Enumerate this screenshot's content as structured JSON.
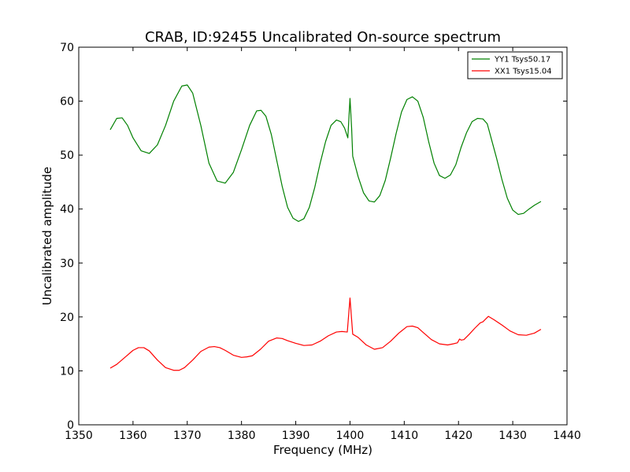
{
  "chart_data": {
    "type": "line",
    "title": "CRAB, ID:92455 Uncalibrated On-source spectrum",
    "xlabel": "Frequency (MHz)",
    "ylabel": "Uncalibrated amplitude",
    "xlim": [
      1350,
      1440
    ],
    "ylim": [
      0,
      70
    ],
    "xticks": [
      1350,
      1360,
      1370,
      1380,
      1390,
      1400,
      1410,
      1420,
      1430,
      1440
    ],
    "yticks": [
      0,
      10,
      20,
      30,
      40,
      50,
      60,
      70
    ],
    "grid": false,
    "legend_position": "top-right",
    "series": [
      {
        "name": "YY1 Tsys50.17",
        "color": "#008000",
        "x": [
          1355.8,
          1357.0,
          1358.0,
          1359.0,
          1360.0,
          1361.5,
          1363.0,
          1364.5,
          1366.0,
          1367.5,
          1369.0,
          1370.0,
          1371.0,
          1372.5,
          1374.0,
          1375.5,
          1377.0,
          1378.5,
          1380.0,
          1381.5,
          1382.8,
          1383.6,
          1384.5,
          1385.5,
          1386.5,
          1387.5,
          1388.5,
          1389.5,
          1390.5,
          1391.5,
          1392.5,
          1393.5,
          1394.5,
          1395.5,
          1396.5,
          1397.5,
          1398.3,
          1399.0,
          1399.6,
          1400.0,
          1400.3,
          1400.5,
          1401.5,
          1402.5,
          1403.5,
          1404.5,
          1405.5,
          1406.5,
          1407.5,
          1408.5,
          1409.5,
          1410.5,
          1411.5,
          1412.5,
          1413.5,
          1414.5,
          1415.5,
          1416.5,
          1417.5,
          1418.5,
          1419.5,
          1420.5,
          1421.5,
          1422.5,
          1423.5,
          1424.5,
          1425.3,
          1426.0,
          1427.0,
          1428.0,
          1429.0,
          1430.0,
          1431.0,
          1432.0,
          1433.0,
          1434.0,
          1435.2
        ],
        "y": [
          54.7,
          56.8,
          56.9,
          55.5,
          53.2,
          50.8,
          50.3,
          51.9,
          55.5,
          60.0,
          62.8,
          63.0,
          61.5,
          55.5,
          48.5,
          45.2,
          44.8,
          46.8,
          51.0,
          55.5,
          58.2,
          58.3,
          57.2,
          53.8,
          49.0,
          44.2,
          40.3,
          38.3,
          37.7,
          38.2,
          40.3,
          44.0,
          48.5,
          52.5,
          55.5,
          56.5,
          56.2,
          55.0,
          53.2,
          60.5,
          55.0,
          49.8,
          46.0,
          43.0,
          41.5,
          41.3,
          42.5,
          45.3,
          49.5,
          54.0,
          58.0,
          60.3,
          60.8,
          60.0,
          57.0,
          52.5,
          48.5,
          46.2,
          45.7,
          46.3,
          48.2,
          51.5,
          54.2,
          56.2,
          56.8,
          56.7,
          55.8,
          53.2,
          49.5,
          45.5,
          42.0,
          39.8,
          39.0,
          39.2,
          40.0,
          40.7,
          41.4
        ]
      },
      {
        "name": "XX1 Tsys15.04",
        "color": "#ff0000",
        "x": [
          1355.8,
          1357.0,
          1358.5,
          1360.0,
          1361.0,
          1362.0,
          1363.0,
          1364.5,
          1366.0,
          1367.5,
          1368.5,
          1369.5,
          1371.0,
          1372.5,
          1374.0,
          1375.0,
          1376.0,
          1377.0,
          1378.5,
          1380.0,
          1381.0,
          1382.0,
          1383.5,
          1385.0,
          1386.5,
          1387.5,
          1388.5,
          1390.0,
          1391.5,
          1393.0,
          1394.5,
          1396.0,
          1397.5,
          1398.5,
          1399.5,
          1400.0,
          1400.3,
          1400.5,
          1401.5,
          1403.0,
          1404.5,
          1406.0,
          1407.5,
          1409.0,
          1410.5,
          1411.5,
          1412.5,
          1413.5,
          1415.0,
          1416.5,
          1418.0,
          1419.0,
          1419.8,
          1420.2,
          1420.5,
          1421.0,
          1422.0,
          1423.0,
          1424.0,
          1424.5,
          1425.0,
          1425.5,
          1426.5,
          1428.0,
          1429.5,
          1431.0,
          1432.5,
          1434.0,
          1435.2
        ],
        "y": [
          10.5,
          11.2,
          12.5,
          13.8,
          14.3,
          14.3,
          13.7,
          12.0,
          10.6,
          10.1,
          10.1,
          10.6,
          12.0,
          13.6,
          14.4,
          14.5,
          14.3,
          13.8,
          12.9,
          12.5,
          12.6,
          12.8,
          14.0,
          15.5,
          16.1,
          16.0,
          15.6,
          15.1,
          14.7,
          14.8,
          15.5,
          16.5,
          17.2,
          17.3,
          17.2,
          23.5,
          19.5,
          16.8,
          16.2,
          14.8,
          14.0,
          14.3,
          15.5,
          17.0,
          18.2,
          18.3,
          18.0,
          17.1,
          15.8,
          15.0,
          14.8,
          15.0,
          15.2,
          15.9,
          15.7,
          15.8,
          16.8,
          17.9,
          18.9,
          19.1,
          19.6,
          20.1,
          19.5,
          18.5,
          17.4,
          16.7,
          16.6,
          17.0,
          17.7
        ]
      }
    ]
  }
}
